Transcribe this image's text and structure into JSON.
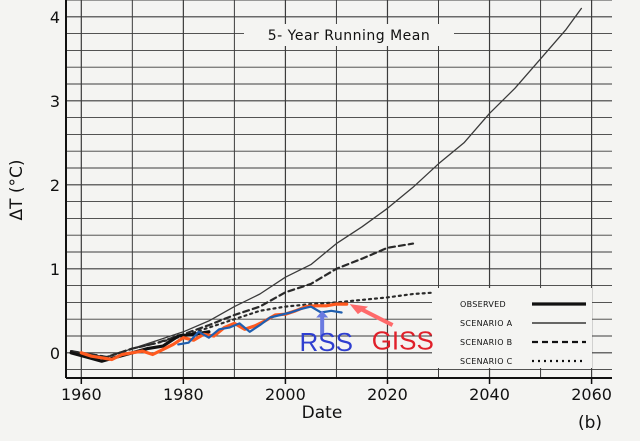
{
  "chart_data": {
    "type": "line",
    "title": "5- Year Running Mean",
    "xlabel": "Date",
    "ylabel": "ΔT (°C)",
    "panel_label": "(b)",
    "xlim": [
      1957,
      2064
    ],
    "ylim": [
      -0.3,
      4.2
    ],
    "x_ticks": [
      1960,
      1980,
      2000,
      2020,
      2040,
      2060
    ],
    "y_ticks": [
      0,
      1,
      2,
      3,
      4
    ],
    "grid": true,
    "legend": {
      "position": "bottom-right",
      "entries": [
        "OBSERVED",
        "SCENARIO A",
        "SCENARIO B",
        "SCENARIO C"
      ]
    },
    "series": [
      {
        "name": "SCENARIO A",
        "style": "thin-solid",
        "color": "#3a3a3a",
        "x": [
          1958,
          1965,
          1970,
          1975,
          1980,
          1985,
          1990,
          1995,
          2000,
          2005,
          2010,
          2015,
          2020,
          2025,
          2030,
          2035,
          2040,
          2045,
          2050,
          2055,
          2058
        ],
        "y": [
          0.02,
          -0.05,
          0.05,
          0.15,
          0.25,
          0.38,
          0.55,
          0.7,
          0.9,
          1.05,
          1.3,
          1.5,
          1.72,
          1.97,
          2.25,
          2.5,
          2.85,
          3.15,
          3.5,
          3.85,
          4.1
        ]
      },
      {
        "name": "SCENARIO B",
        "style": "dashed",
        "color": "#2a2a2a",
        "x": [
          1958,
          1965,
          1970,
          1975,
          1980,
          1985,
          1990,
          1995,
          2000,
          2005,
          2010,
          2015,
          2020,
          2025
        ],
        "y": [
          0.02,
          -0.05,
          0.05,
          0.12,
          0.22,
          0.33,
          0.45,
          0.55,
          0.72,
          0.82,
          1.0,
          1.12,
          1.25,
          1.3
        ]
      },
      {
        "name": "SCENARIO C",
        "style": "dotted",
        "color": "#2a2a2a",
        "x": [
          1958,
          1965,
          1970,
          1975,
          1980,
          1985,
          1990,
          1995,
          2000,
          2005,
          2010,
          2015,
          2020,
          2025,
          2030,
          2037
        ],
        "y": [
          0.02,
          -0.05,
          0.05,
          0.12,
          0.2,
          0.3,
          0.4,
          0.5,
          0.55,
          0.58,
          0.6,
          0.63,
          0.66,
          0.7,
          0.72,
          0.72
        ]
      },
      {
        "name": "OBSERVED",
        "style": "thick-solid",
        "color": "#111111",
        "x": [
          1958,
          1961,
          1964,
          1967,
          1970,
          1973,
          1976,
          1979,
          1982,
          1985
        ],
        "y": [
          0.0,
          -0.05,
          -0.1,
          -0.05,
          0.0,
          0.05,
          0.08,
          0.2,
          0.22,
          0.25
        ]
      },
      {
        "name": "GISS",
        "style": "thick-solid",
        "color": "#ff5a1f",
        "x": [
          1960,
          1962,
          1964,
          1966,
          1968,
          1970,
          1972,
          1974,
          1976,
          1978,
          1980,
          1982,
          1984,
          1986,
          1988,
          1990,
          1992,
          1994,
          1996,
          1998,
          2000,
          2002,
          2004,
          2006,
          2008,
          2010,
          2012
        ],
        "y": [
          0.0,
          -0.04,
          -0.06,
          -0.08,
          -0.02,
          0.0,
          0.02,
          -0.02,
          0.04,
          0.1,
          0.18,
          0.15,
          0.22,
          0.2,
          0.3,
          0.35,
          0.28,
          0.32,
          0.38,
          0.45,
          0.46,
          0.5,
          0.55,
          0.56,
          0.56,
          0.58,
          0.58
        ]
      },
      {
        "name": "RSS",
        "style": "solid",
        "color": "#1f5fb0",
        "x": [
          1979,
          1981,
          1983,
          1985,
          1987,
          1989,
          1991,
          1993,
          1995,
          1997,
          1999,
          2001,
          2003,
          2005,
          2007,
          2009,
          2011
        ],
        "y": [
          0.1,
          0.12,
          0.25,
          0.18,
          0.28,
          0.3,
          0.35,
          0.25,
          0.33,
          0.42,
          0.45,
          0.48,
          0.52,
          0.55,
          0.48,
          0.5,
          0.48
        ]
      }
    ],
    "annotations": [
      {
        "text": "RSS",
        "color": "#2f3fd0",
        "x": 2008,
        "y": 0.02
      },
      {
        "text": "GISS",
        "color": "#e0202a",
        "x": 2023,
        "y": 0.04
      }
    ]
  }
}
